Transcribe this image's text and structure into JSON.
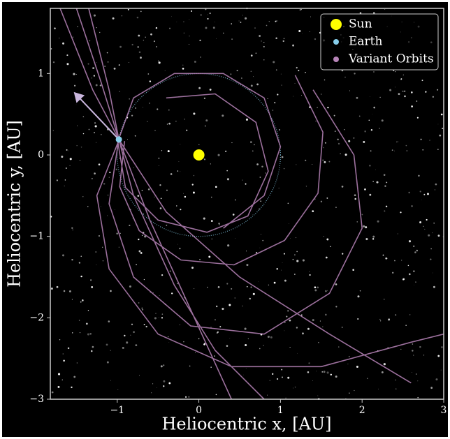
{
  "chart_data": {
    "type": "line",
    "xlabel": "Heliocentric x, [AU]",
    "ylabel": "Heliocentric y, [AU]",
    "xlim": [
      -1.82,
      3
    ],
    "ylim": [
      -3,
      1.8
    ],
    "xticks": [
      {
        "value": -1,
        "label": "−1"
      },
      0,
      1,
      2,
      3
    ],
    "yticks": [
      {
        "value": -3,
        "label": "−3"
      },
      {
        "value": -2,
        "label": "−2"
      },
      {
        "value": -1,
        "label": "−1"
      },
      0,
      1
    ],
    "legend": "upper right",
    "series": [
      {
        "name": "Sun",
        "color": "#ffff00",
        "x": [
          0
        ],
        "y": [
          0
        ]
      },
      {
        "name": "Earth",
        "color": "#87ceeb",
        "x": [
          -0.98
        ],
        "y": [
          0.19
        ],
        "orbit_radius": 1
      },
      {
        "name": "Variant Orbits",
        "color": "#b784b8",
        "x": [
          -0.91,
          -0.97,
          -0.73,
          -0.22,
          0.43,
          1.05,
          1.46,
          1.52,
          1.18,
          null,
          -0.98,
          -1.1,
          -0.8,
          -0.1,
          0.8,
          1.6,
          2.0,
          1.9,
          1.4,
          null,
          -1.0,
          -0.9,
          -0.5,
          0.1,
          0.6,
          0.85,
          0.7,
          0.2,
          -0.4,
          null,
          -0.98,
          -1.25,
          -1.1,
          -0.5,
          0.4,
          1.5,
          2.6,
          3.0,
          null,
          -0.98,
          -0.8,
          -0.3,
          0.3,
          0.8,
          1.0,
          0.8,
          0.3,
          null,
          -1.5,
          -1.2,
          -0.98,
          -0.6,
          -0.1,
          0.4,
          null,
          -1.35,
          -1.1,
          -0.98,
          -0.8,
          -0.3,
          0.2,
          0.8,
          null,
          -1.7,
          -1.3,
          -0.98,
          -0.4,
          0.5,
          1.6,
          2.6
        ],
        "y": [
          0.17,
          -0.39,
          -0.93,
          -1.29,
          -1.35,
          -1.05,
          -0.47,
          0.28,
          0.98,
          null,
          0.2,
          -0.6,
          -1.5,
          -2.1,
          -2.2,
          -1.7,
          -0.9,
          0.0,
          0.8,
          null,
          0.2,
          -0.4,
          -0.8,
          -0.95,
          -0.75,
          -0.2,
          0.4,
          0.75,
          0.7,
          null,
          0.18,
          -0.5,
          -1.4,
          -2.2,
          -2.6,
          -2.6,
          -2.3,
          -2.2,
          null,
          0.2,
          0.7,
          1.0,
          1.0,
          0.7,
          0.1,
          -0.5,
          -0.9,
          null,
          1.8,
          0.9,
          0.19,
          -0.8,
          -1.9,
          -3.0,
          null,
          1.8,
          0.8,
          0.19,
          -0.5,
          -1.6,
          -2.4,
          -3.0,
          null,
          1.8,
          0.8,
          0.19,
          -0.7,
          -1.5,
          -2.2,
          -2.8
        ]
      }
    ],
    "velocity_arrow": {
      "color": "#c9b6dd",
      "x": [
        -0.98,
        -1.52
      ],
      "y": [
        0.19,
        0.76
      ]
    }
  }
}
